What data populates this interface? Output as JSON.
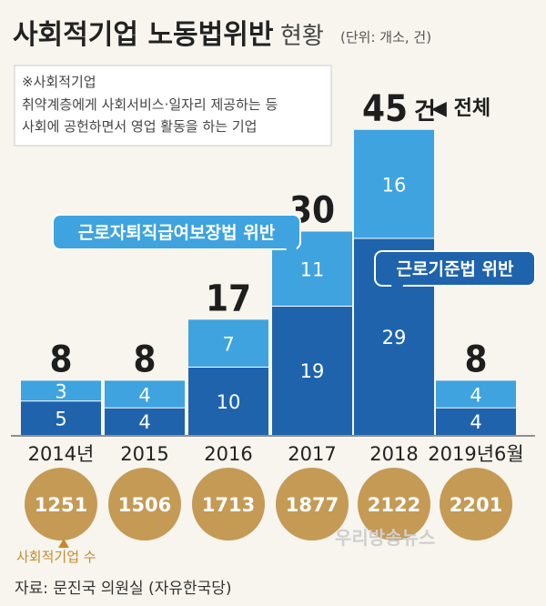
{
  "header": {
    "title": "사회적기업 노동법위반",
    "subtitle": "현황",
    "unit": "(단위: 개소, 건)"
  },
  "note": {
    "heading": "※사회적기업",
    "line1": "취약계층에게 사회서비스·일자리 제공하는 등",
    "line2": "사회에 공헌하면서 영업 활동을 하는 기업"
  },
  "callouts": {
    "retirement": "근로자퇴직급여보장법 위반",
    "labor": "근로기준법 위반",
    "total_marker": "◀ 전체",
    "total_suffix": "건"
  },
  "legend": {
    "circle_caption": "사회적기업 수"
  },
  "source": "자료: 문진국 의원실 (자유한국당)",
  "watermark": "우리방송뉴스",
  "colors": {
    "background": "#f7f5ee",
    "bar_bottom": "#1f63ad",
    "bar_top": "#3ea3df",
    "circle": "#c49a55",
    "callout": "#3ea3df"
  },
  "chart_data": {
    "type": "bar",
    "stacked": true,
    "categories": [
      "2014년",
      "2015",
      "2016",
      "2017",
      "2018",
      "2019년6월"
    ],
    "series": [
      {
        "name": "근로기준법 위반",
        "values": [
          5,
          4,
          10,
          19,
          29,
          4
        ]
      },
      {
        "name": "근로자퇴직급여보장법 위반",
        "values": [
          3,
          4,
          7,
          11,
          16,
          4
        ]
      }
    ],
    "totals": [
      "8",
      "8",
      "17",
      "30",
      "45",
      "8"
    ],
    "social_enterprises": [
      "1251",
      "1506",
      "1713",
      "1877",
      "2122",
      "2201"
    ],
    "ylim": [
      0,
      45
    ],
    "grid": false,
    "legend": "callouts"
  }
}
